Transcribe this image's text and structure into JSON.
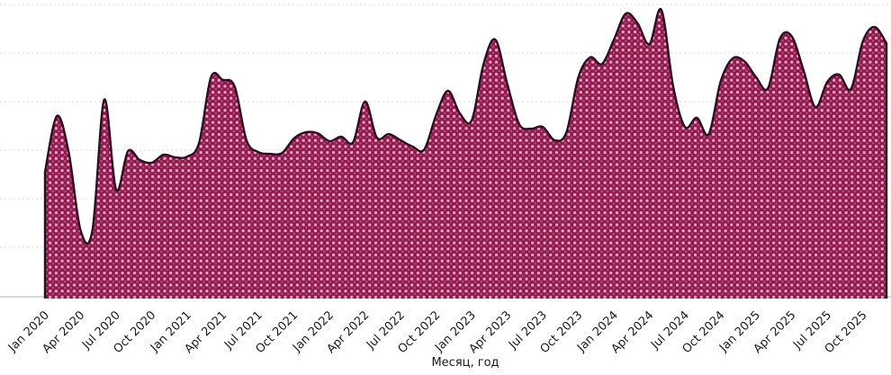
{
  "chart_data": {
    "type": "area",
    "title": "",
    "xlabel": "Месяц, год",
    "ylabel": "",
    "value_scale": "percent-of-plot-height (no y-axis tick labels visible)",
    "ylim": [
      0,
      100
    ],
    "grid": true,
    "legend": false,
    "x_tick_step_months": 3,
    "months": [
      "Jan 2020",
      "Feb 2020",
      "Mar 2020",
      "Apr 2020",
      "May 2020",
      "Jun 2020",
      "Jul 2020",
      "Aug 2020",
      "Sep 2020",
      "Oct 2020",
      "Nov 2020",
      "Dec 2020",
      "Jan 2021",
      "Feb 2021",
      "Mar 2021",
      "Apr 2021",
      "May 2021",
      "Jun 2021",
      "Jul 2021",
      "Aug 2021",
      "Sep 2021",
      "Oct 2021",
      "Nov 2021",
      "Dec 2021",
      "Jan 2022",
      "Feb 2022",
      "Mar 2022",
      "Apr 2022",
      "May 2022",
      "Jun 2022",
      "Jul 2022",
      "Aug 2022",
      "Sep 2022",
      "Oct 2022",
      "Nov 2022",
      "Dec 2022",
      "Jan 2023",
      "Feb 2023",
      "Mar 2023",
      "Apr 2023",
      "May 2023",
      "Jun 2023",
      "Jul 2023",
      "Aug 2023",
      "Sep 2023",
      "Oct 2023",
      "Nov 2023",
      "Dec 2023",
      "Jan 2024",
      "Feb 2024",
      "Mar 2024",
      "Apr 2024",
      "May 2024",
      "Jun 2024",
      "Jul 2024",
      "Aug 2024",
      "Sep 2024",
      "Oct 2024",
      "Nov 2024",
      "Dec 2024",
      "Jan 2025",
      "Feb 2025",
      "Mar 2025",
      "Apr 2025",
      "May 2025",
      "Jun 2025",
      "Jul 2025",
      "Aug 2025",
      "Sep 2025",
      "Oct 2025",
      "Nov 2025",
      "Dec 2025"
    ],
    "series": [
      {
        "name": "monthly_value",
        "values": [
          42.2,
          61.1,
          48.9,
          22.5,
          22.5,
          66.6,
          36.2,
          49.2,
          46.2,
          45.3,
          48.0,
          47.1,
          47.4,
          52.0,
          74.2,
          73.3,
          71.1,
          52.9,
          48.9,
          48.3,
          48.6,
          53.5,
          55.6,
          55.3,
          52.6,
          54.1,
          52.3,
          66.0,
          53.8,
          55.0,
          52.9,
          50.8,
          49.8,
          61.4,
          69.6,
          62.0,
          59.6,
          78.7,
          86.9,
          72.0,
          58.4,
          56.8,
          57.4,
          52.9,
          55.6,
          74.2,
          80.9,
          78.7,
          86.9,
          95.7,
          92.4,
          85.4,
          97.0,
          71.1,
          57.4,
          60.5,
          55.0,
          72.6,
          80.5,
          79.6,
          74.2,
          70.5,
          87.2,
          88.1,
          76.6,
          64.1,
          72.6,
          75.1,
          70.2,
          86.3,
          91.2,
          85.7
        ]
      }
    ],
    "colors": {
      "fill_base": "#8C1A4E",
      "fill_dot_bright": "#F3A6C6",
      "fill_dot_dim": "#BA4E7C",
      "outline": "#2E0E1F",
      "gridline": "#d9d9d9",
      "axis_line": "#c8c8c8",
      "label_text": "#1a1a1a"
    }
  }
}
